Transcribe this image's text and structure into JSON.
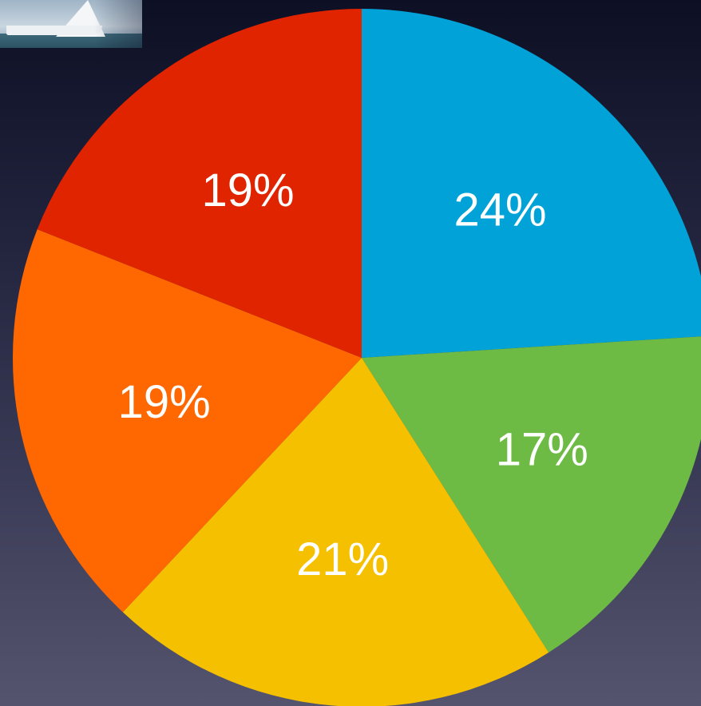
{
  "chart_data": {
    "type": "pie",
    "slices": [
      {
        "label": "24%",
        "value": 24,
        "color": "#00a2d8"
      },
      {
        "label": "17%",
        "value": 17,
        "color": "#6dbb45"
      },
      {
        "label": "21%",
        "value": 21,
        "color": "#f5c000"
      },
      {
        "label": "19%",
        "value": 19,
        "color": "#ff6700"
      },
      {
        "label": "19%",
        "value": 19,
        "color": "#e02400"
      }
    ],
    "start": "top",
    "direction": "clockwise",
    "legend": "none"
  },
  "decor": {
    "thumbnail_icon": "sailboat-photo-icon"
  }
}
